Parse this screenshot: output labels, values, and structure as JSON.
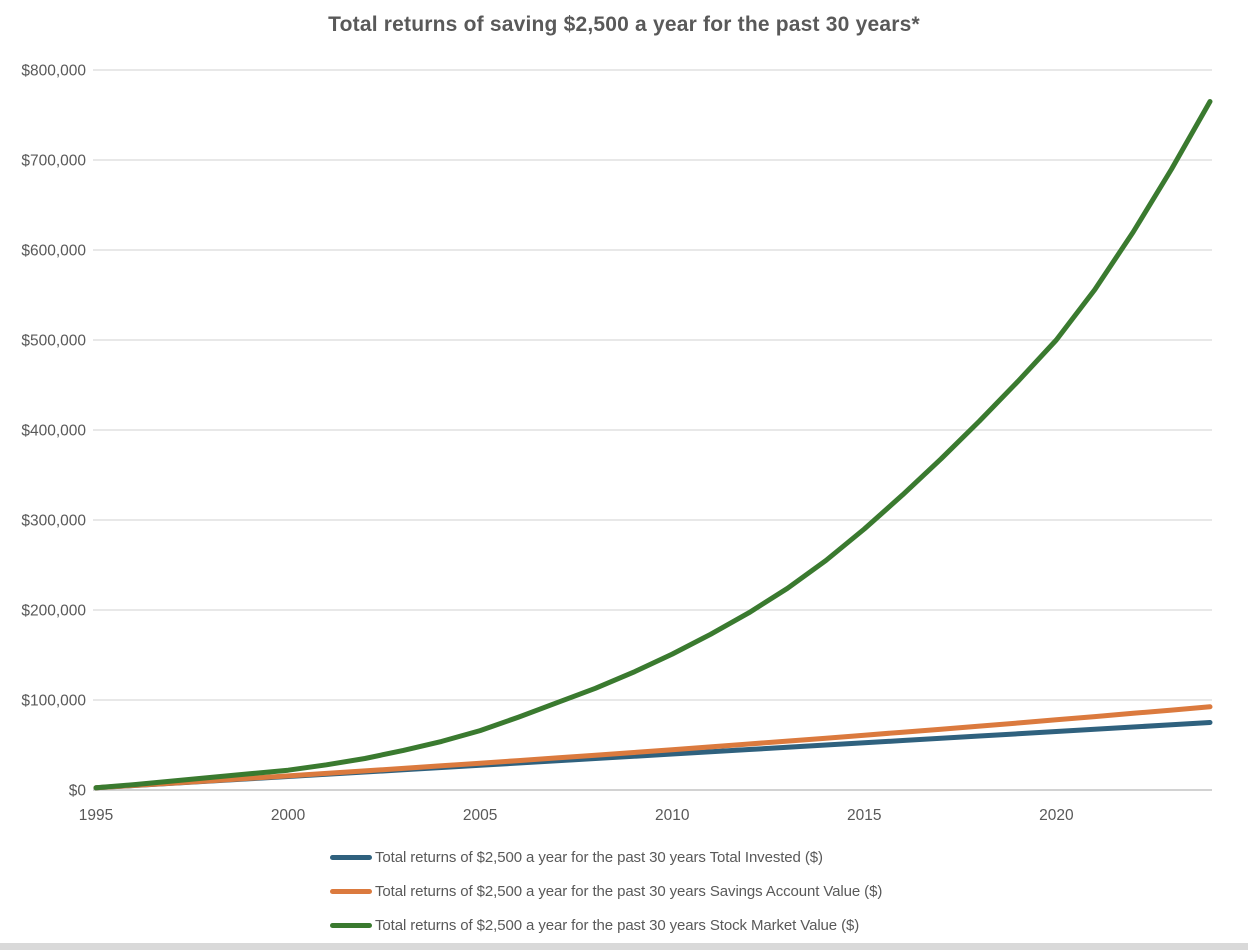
{
  "colors": {
    "text": "#595959",
    "gridline": "#d9d9d9",
    "axis_line": "#d2d2d2",
    "bottom_bar": "#d9d9d9"
  },
  "chart_data": {
    "type": "line",
    "title": "Total returns of saving $2,500 a year for the past 30 years*",
    "grid": "horizontal",
    "legend_position": "bottom",
    "x": [
      1995,
      1996,
      1997,
      1998,
      1999,
      2000,
      2001,
      2002,
      2003,
      2004,
      2005,
      2006,
      2007,
      2008,
      2009,
      2010,
      2011,
      2012,
      2013,
      2014,
      2015,
      2016,
      2017,
      2018,
      2019,
      2020,
      2021,
      2022,
      2023,
      2024
    ],
    "x_tick_labels": [
      "1995",
      "2000",
      "2005",
      "2010",
      "2015",
      "2020"
    ],
    "ylim": [
      0,
      800000
    ],
    "y_tick_step": 100000,
    "y_tick_labels": [
      "$0",
      "$100,000",
      "$200,000",
      "$300,000",
      "$400,000",
      "$500,000",
      "$600,000",
      "$700,000",
      "$800,000"
    ],
    "series": [
      {
        "name": "Total returns of $2,500 a year for the past 30 years Total Invested ($)",
        "color": "#2f617e",
        "values": [
          2500,
          5000,
          7500,
          10000,
          12500,
          15000,
          17500,
          20000,
          22500,
          25000,
          27500,
          30000,
          32500,
          35000,
          37500,
          40000,
          42500,
          45000,
          47500,
          50000,
          52500,
          55000,
          57500,
          60000,
          62500,
          65000,
          67500,
          70000,
          72500,
          75000
        ]
      },
      {
        "name": "Total returns of $2,500 a year for the past 30 years Savings Account Value ($)",
        "color": "#db7a3e",
        "values": [
          2500,
          5100,
          7700,
          10300,
          13000,
          15700,
          18400,
          21200,
          24000,
          26900,
          29800,
          32700,
          35700,
          38700,
          41700,
          44800,
          47900,
          51100,
          54300,
          57600,
          60900,
          64200,
          67600,
          71000,
          74500,
          78000,
          81600,
          85200,
          88800,
          92500
        ]
      },
      {
        "name": "Total returns of $2,500 a year for the past 30 years Stock Market Value ($)",
        "color": "#3a7a2f",
        "values": [
          2500,
          6000,
          10000,
          14000,
          18000,
          22000,
          28000,
          35000,
          44000,
          54000,
          66000,
          81000,
          97000,
          113000,
          131000,
          151000,
          173000,
          197000,
          224000,
          255000,
          290000,
          328000,
          368000,
          410000,
          454000,
          500000,
          556000,
          620000,
          690000,
          765000
        ]
      }
    ]
  }
}
